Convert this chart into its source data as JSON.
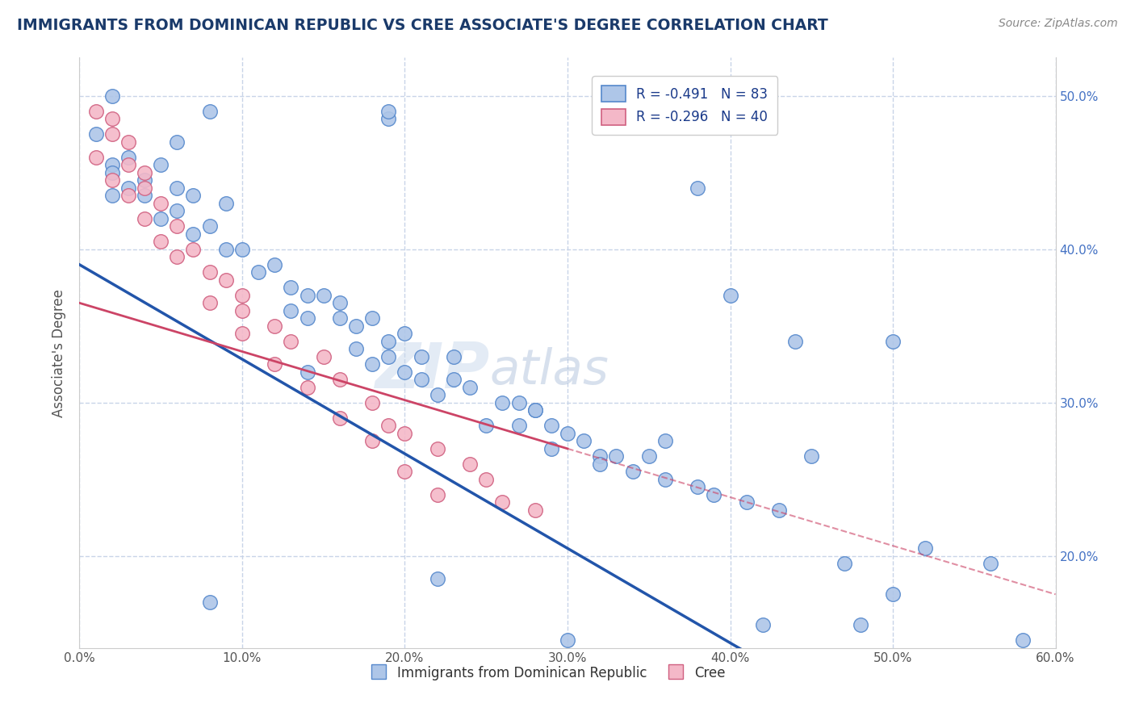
{
  "title": "IMMIGRANTS FROM DOMINICAN REPUBLIC VS CREE ASSOCIATE'S DEGREE CORRELATION CHART",
  "source": "Source: ZipAtlas.com",
  "xlabel": "",
  "ylabel": "Associate's Degree",
  "legend_label_blue": "Immigrants from Dominican Republic",
  "legend_label_pink": "Cree",
  "r_blue": -0.491,
  "n_blue": 83,
  "r_pink": -0.296,
  "n_pink": 40,
  "xlim": [
    0.0,
    0.6
  ],
  "ylim": [
    0.14,
    0.525
  ],
  "xticks": [
    0.0,
    0.1,
    0.2,
    0.3,
    0.4,
    0.5,
    0.6
  ],
  "xtick_labels": [
    "0.0%",
    "10.0%",
    "20.0%",
    "30.0%",
    "40.0%",
    "50.0%",
    "60.0%"
  ],
  "yticks": [
    0.2,
    0.3,
    0.4,
    0.5
  ],
  "ytick_labels": [
    "20.0%",
    "30.0%",
    "40.0%",
    "50.0%"
  ],
  "color_blue": "#aec6e8",
  "color_blue_edge": "#5588cc",
  "color_blue_line": "#2255aa",
  "color_pink": "#f4b8c8",
  "color_pink_edge": "#d06080",
  "color_pink_line": "#cc4466",
  "watermark_zip": "ZIP",
  "watermark_atlas": "atlas",
  "background_color": "#ffffff",
  "grid_color": "#c8d4e8",
  "title_color": "#1a3a6a",
  "source_color": "#888888",
  "blue_points": [
    [
      0.02,
      0.5
    ],
    [
      0.08,
      0.49
    ],
    [
      0.19,
      0.485
    ],
    [
      0.01,
      0.475
    ],
    [
      0.06,
      0.47
    ],
    [
      0.03,
      0.46
    ],
    [
      0.02,
      0.455
    ],
    [
      0.05,
      0.455
    ],
    [
      0.02,
      0.45
    ],
    [
      0.04,
      0.445
    ],
    [
      0.03,
      0.44
    ],
    [
      0.06,
      0.44
    ],
    [
      0.02,
      0.435
    ],
    [
      0.04,
      0.435
    ],
    [
      0.07,
      0.435
    ],
    [
      0.09,
      0.43
    ],
    [
      0.06,
      0.425
    ],
    [
      0.05,
      0.42
    ],
    [
      0.08,
      0.415
    ],
    [
      0.07,
      0.41
    ],
    [
      0.1,
      0.4
    ],
    [
      0.09,
      0.4
    ],
    [
      0.12,
      0.39
    ],
    [
      0.11,
      0.385
    ],
    [
      0.13,
      0.375
    ],
    [
      0.14,
      0.37
    ],
    [
      0.15,
      0.37
    ],
    [
      0.16,
      0.365
    ],
    [
      0.13,
      0.36
    ],
    [
      0.14,
      0.355
    ],
    [
      0.16,
      0.355
    ],
    [
      0.18,
      0.355
    ],
    [
      0.17,
      0.35
    ],
    [
      0.2,
      0.345
    ],
    [
      0.19,
      0.34
    ],
    [
      0.17,
      0.335
    ],
    [
      0.19,
      0.33
    ],
    [
      0.21,
      0.33
    ],
    [
      0.23,
      0.33
    ],
    [
      0.18,
      0.325
    ],
    [
      0.2,
      0.32
    ],
    [
      0.21,
      0.315
    ],
    [
      0.23,
      0.315
    ],
    [
      0.24,
      0.31
    ],
    [
      0.22,
      0.305
    ],
    [
      0.26,
      0.3
    ],
    [
      0.27,
      0.3
    ],
    [
      0.28,
      0.295
    ],
    [
      0.25,
      0.285
    ],
    [
      0.27,
      0.285
    ],
    [
      0.29,
      0.285
    ],
    [
      0.3,
      0.28
    ],
    [
      0.31,
      0.275
    ],
    [
      0.29,
      0.27
    ],
    [
      0.32,
      0.265
    ],
    [
      0.33,
      0.265
    ],
    [
      0.35,
      0.265
    ],
    [
      0.32,
      0.26
    ],
    [
      0.34,
      0.255
    ],
    [
      0.36,
      0.25
    ],
    [
      0.38,
      0.245
    ],
    [
      0.39,
      0.24
    ],
    [
      0.41,
      0.235
    ],
    [
      0.43,
      0.23
    ],
    [
      0.4,
      0.37
    ],
    [
      0.38,
      0.44
    ],
    [
      0.44,
      0.34
    ],
    [
      0.45,
      0.265
    ],
    [
      0.47,
      0.195
    ],
    [
      0.48,
      0.155
    ],
    [
      0.42,
      0.155
    ],
    [
      0.3,
      0.145
    ],
    [
      0.36,
      0.275
    ],
    [
      0.5,
      0.34
    ],
    [
      0.52,
      0.205
    ],
    [
      0.56,
      0.195
    ],
    [
      0.5,
      0.175
    ],
    [
      0.22,
      0.185
    ],
    [
      0.08,
      0.17
    ],
    [
      0.19,
      0.49
    ],
    [
      0.28,
      0.295
    ],
    [
      0.14,
      0.32
    ],
    [
      0.58,
      0.145
    ]
  ],
  "pink_points": [
    [
      0.01,
      0.49
    ],
    [
      0.02,
      0.485
    ],
    [
      0.02,
      0.475
    ],
    [
      0.03,
      0.47
    ],
    [
      0.01,
      0.46
    ],
    [
      0.03,
      0.455
    ],
    [
      0.04,
      0.45
    ],
    [
      0.02,
      0.445
    ],
    [
      0.04,
      0.44
    ],
    [
      0.03,
      0.435
    ],
    [
      0.05,
      0.43
    ],
    [
      0.04,
      0.42
    ],
    [
      0.06,
      0.415
    ],
    [
      0.05,
      0.405
    ],
    [
      0.07,
      0.4
    ],
    [
      0.06,
      0.395
    ],
    [
      0.08,
      0.385
    ],
    [
      0.09,
      0.38
    ],
    [
      0.1,
      0.37
    ],
    [
      0.08,
      0.365
    ],
    [
      0.1,
      0.36
    ],
    [
      0.12,
      0.35
    ],
    [
      0.1,
      0.345
    ],
    [
      0.13,
      0.34
    ],
    [
      0.15,
      0.33
    ],
    [
      0.12,
      0.325
    ],
    [
      0.16,
      0.315
    ],
    [
      0.14,
      0.31
    ],
    [
      0.18,
      0.3
    ],
    [
      0.16,
      0.29
    ],
    [
      0.2,
      0.28
    ],
    [
      0.18,
      0.275
    ],
    [
      0.22,
      0.27
    ],
    [
      0.24,
      0.26
    ],
    [
      0.2,
      0.255
    ],
    [
      0.25,
      0.25
    ],
    [
      0.22,
      0.24
    ],
    [
      0.26,
      0.235
    ],
    [
      0.28,
      0.23
    ],
    [
      0.19,
      0.285
    ]
  ]
}
